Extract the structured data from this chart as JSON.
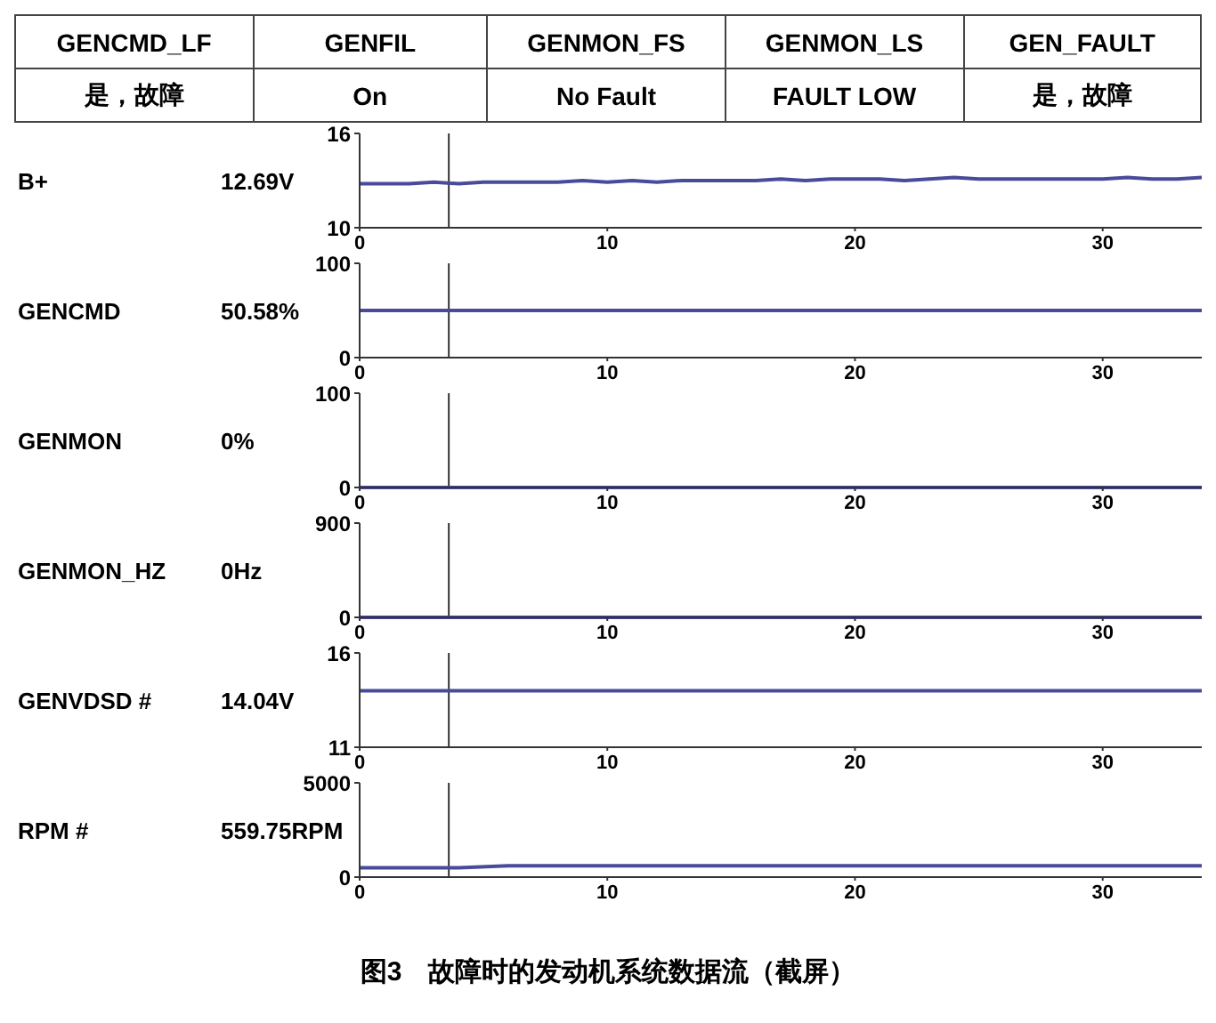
{
  "chart_data": [
    {
      "type": "other",
      "annotations": [
        "GENCMD_LF",
        "GENFIL",
        "GENMON_FS",
        "GENMON_LS",
        "GEN_FAULT",
        "是，故障",
        "On",
        "No Fault",
        "FAULT LOW",
        "是，故障"
      ]
    },
    {
      "type": "line",
      "ylabel": "B+",
      "annotations": [
        "12.69V"
      ],
      "x": [
        0,
        1,
        2,
        3,
        4,
        5,
        6,
        7,
        8,
        9,
        10,
        11,
        12,
        13,
        14,
        15,
        16,
        17,
        18,
        19,
        20,
        21,
        22,
        23,
        24,
        25,
        26,
        27,
        28,
        29,
        30,
        31,
        32,
        33,
        34
      ],
      "values": [
        12.8,
        12.8,
        12.8,
        12.9,
        12.8,
        12.9,
        12.9,
        12.9,
        12.9,
        13.0,
        12.9,
        13.0,
        12.9,
        13.0,
        13.0,
        13.0,
        13.0,
        13.1,
        13.0,
        13.1,
        13.1,
        13.1,
        13.0,
        13.1,
        13.2,
        13.1,
        13.1,
        13.1,
        13.1,
        13.1,
        13.1,
        13.2,
        13.1,
        13.1,
        13.2
      ],
      "color": "#4a4a9a",
      "xlim": [
        0,
        34
      ],
      "xticks": [
        0,
        10,
        20,
        30
      ],
      "ylim": [
        10,
        16
      ],
      "yticks": [
        10,
        16
      ],
      "ref_lines": [
        {
          "axis": "x",
          "value": 3.6,
          "color": "#333333"
        }
      ]
    },
    {
      "type": "line",
      "ylabel": "GENCMD",
      "annotations": [
        "50.58%"
      ],
      "x": [
        0,
        34
      ],
      "values": [
        50,
        50
      ],
      "color": "#4a4a9a",
      "xlim": [
        0,
        34
      ],
      "xticks": [
        0,
        10,
        20,
        30
      ],
      "ylim": [
        0,
        100
      ],
      "yticks": [
        0,
        100
      ],
      "ref_lines": [
        {
          "axis": "x",
          "value": 3.6,
          "color": "#333333"
        }
      ]
    },
    {
      "type": "line",
      "ylabel": "GENMON",
      "annotations": [
        "0%"
      ],
      "x": [
        0,
        34
      ],
      "values": [
        0,
        0
      ],
      "color": "#4a4a9a",
      "xlim": [
        0,
        34
      ],
      "xticks": [
        0,
        10,
        20,
        30
      ],
      "ylim": [
        0,
        100
      ],
      "yticks": [
        0,
        100
      ],
      "ref_lines": [
        {
          "axis": "x",
          "value": 3.6,
          "color": "#333333"
        }
      ]
    },
    {
      "type": "line",
      "ylabel": "GENMON_HZ",
      "annotations": [
        "0Hz"
      ],
      "x": [
        0,
        34
      ],
      "values": [
        0,
        0
      ],
      "color": "#4a4a9a",
      "xlim": [
        0,
        34
      ],
      "xticks": [
        0,
        10,
        20,
        30
      ],
      "ylim": [
        0,
        900
      ],
      "yticks": [
        0,
        900
      ],
      "ref_lines": [
        {
          "axis": "x",
          "value": 3.6,
          "color": "#333333"
        }
      ]
    },
    {
      "type": "line",
      "ylabel": "GENVDSD #",
      "annotations": [
        "14.04V"
      ],
      "x": [
        0,
        34
      ],
      "values": [
        14.0,
        14.0
      ],
      "color": "#4a4a9a",
      "xlim": [
        0,
        34
      ],
      "xticks": [
        0,
        10,
        20,
        30
      ],
      "ylim": [
        11,
        16
      ],
      "yticks": [
        11,
        16
      ],
      "ref_lines": [
        {
          "axis": "x",
          "value": 3.6,
          "color": "#333333"
        }
      ]
    },
    {
      "type": "line",
      "ylabel": "RPM #",
      "annotations": [
        "559.75RPM",
        "图3　故障时的发动机系统数据流（截屏）"
      ],
      "x": [
        0,
        2,
        4,
        6,
        8,
        10,
        12,
        14,
        16,
        18,
        20,
        22,
        24,
        26,
        28,
        30,
        32,
        34
      ],
      "values": [
        500,
        500,
        500,
        600,
        600,
        600,
        600,
        600,
        600,
        600,
        600,
        600,
        600,
        600,
        600,
        600,
        600,
        600
      ],
      "color": "#4a4a9a",
      "xlim": [
        0,
        34
      ],
      "xticks": [
        0,
        10,
        20,
        30
      ],
      "ylim": [
        0,
        5000
      ],
      "yticks": [
        0,
        5000
      ],
      "ref_lines": [
        {
          "axis": "x",
          "value": 3.6,
          "color": "#333333"
        }
      ]
    }
  ]
}
